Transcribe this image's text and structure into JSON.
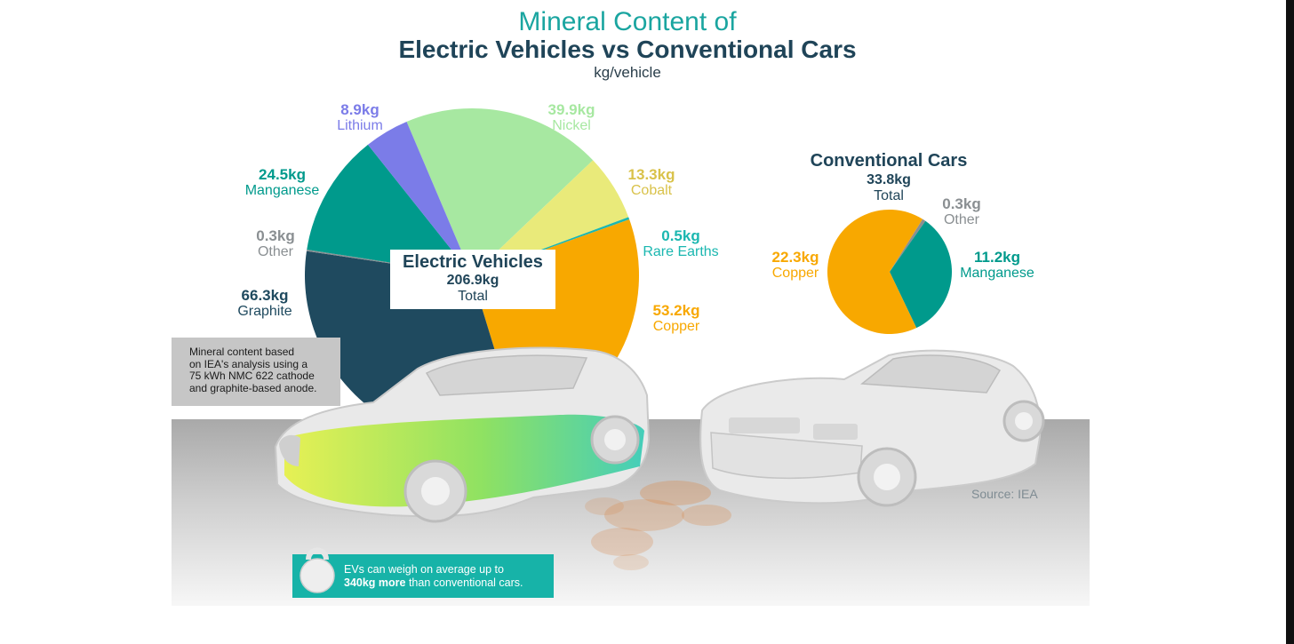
{
  "header": {
    "title_top": "Mineral Content of",
    "title_main": "Electric Vehicles vs Conventional Cars",
    "unit": "kg/vehicle"
  },
  "chart_data": [
    {
      "type": "pie",
      "title": "Electric Vehicles",
      "total": "206.9kg",
      "total_label": "Total",
      "unit": "kg",
      "slices": [
        {
          "name": "Nickel",
          "value": 39.9,
          "label": "39.9kg",
          "color": "#a7e8a1"
        },
        {
          "name": "Cobalt",
          "value": 13.3,
          "label": "13.3kg",
          "color": "#e9ea7a"
        },
        {
          "name": "Rare Earths",
          "value": 0.5,
          "label": "0.5kg",
          "color": "#1bb7b0"
        },
        {
          "name": "Copper",
          "value": 53.2,
          "label": "53.2kg",
          "color": "#f8a800"
        },
        {
          "name": "Graphite",
          "value": 66.3,
          "label": "66.3kg",
          "color": "#1f4a5f"
        },
        {
          "name": "Other",
          "value": 0.3,
          "label": "0.3kg",
          "color": "#8a8f92"
        },
        {
          "name": "Manganese",
          "value": 24.5,
          "label": "24.5kg",
          "color": "#009a8c"
        },
        {
          "name": "Lithium",
          "value": 8.9,
          "label": "8.9kg",
          "color": "#7b7ce8"
        }
      ]
    },
    {
      "type": "pie",
      "title": "Conventional Cars",
      "total": "33.8kg",
      "total_label": "Total",
      "unit": "kg",
      "slices": [
        {
          "name": "Other",
          "value": 0.3,
          "label": "0.3kg",
          "color": "#8a8f92"
        },
        {
          "name": "Manganese",
          "value": 11.2,
          "label": "11.2kg",
          "color": "#009a8c"
        },
        {
          "name": "Copper",
          "value": 22.3,
          "label": "22.3kg",
          "color": "#f8a800"
        }
      ]
    }
  ],
  "note": {
    "lines": [
      "Mineral content based",
      "on IEA's analysis using a",
      "75 kWh NMC 622 cathode",
      "and graphite-based anode."
    ]
  },
  "source": "Source: IEA",
  "tip": {
    "line1": "EVs can weigh on average up to",
    "bold": "340kg more",
    "rest": " than conventional cars."
  },
  "colors": {
    "title_teal": "#1aa5a0",
    "navy": "#1f4458",
    "tip_bg": "#17b3a8",
    "note_bg": "#c6c6c6"
  }
}
